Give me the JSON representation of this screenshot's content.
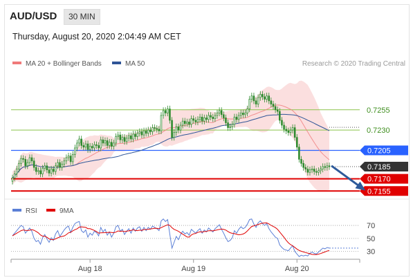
{
  "header": {
    "symbol": "AUD/USD",
    "interval": "30 MIN",
    "datetime": "Thursday, August 20, 2020 2:04:49 AM CET"
  },
  "colors": {
    "candle": "#2d8a2d",
    "bollinger": "#f4a3a3",
    "ma20": "#f07a7a",
    "ma50": "#2f5597",
    "resistance_line": "#8bc34a",
    "resistance_text": "#3e8e1e",
    "pivot": "#2962ff",
    "support": "#e00000",
    "current": "#333333",
    "arrow": "#2e5a9a",
    "rsi": "#5b7fd6",
    "rsi_ma": "#e00000"
  },
  "chart_data": [
    {
      "type": "candlestick",
      "legend": [
        {
          "name": "MA 20 + Bollinger Bands",
          "color": "#f07a7a"
        },
        {
          "name": "MA 50",
          "color": "#2f5597"
        }
      ],
      "legend_position": "top-left",
      "credit": "Research © 2020 Trading Central",
      "ylim": [
        0.7145,
        0.7305
      ],
      "x_ticks": [
        {
          "label": "Aug 18",
          "index": 36
        },
        {
          "label": "Aug 19",
          "index": 84
        },
        {
          "label": "Aug 20",
          "index": 132
        }
      ],
      "levels": [
        {
          "value": 0.7255,
          "label": "0.7255",
          "kind": "resistance"
        },
        {
          "value": 0.723,
          "label": "0.7230",
          "kind": "resistance"
        },
        {
          "value": 0.7205,
          "label": "0.7205",
          "kind": "pivot"
        },
        {
          "value": 0.7185,
          "label": "0.7185",
          "kind": "current"
        },
        {
          "value": 0.717,
          "label": "0.7170",
          "kind": "support"
        },
        {
          "value": 0.7155,
          "label": "0.7155",
          "kind": "support"
        }
      ],
      "arrow": {
        "from_index": 148,
        "from_value": 0.7186,
        "to_index": 163,
        "to_value": 0.7157
      },
      "close": [
        0.7171,
        0.7176,
        0.7182,
        0.7189,
        0.7195,
        0.7194,
        0.7186,
        0.719,
        0.7196,
        0.7192,
        0.7184,
        0.7179,
        0.718,
        0.7176,
        0.7183,
        0.7186,
        0.7181,
        0.7177,
        0.7182,
        0.7179,
        0.7186,
        0.719,
        0.7184,
        0.7188,
        0.7192,
        0.7196,
        0.7198,
        0.7191,
        0.72,
        0.7208,
        0.7214,
        0.7219,
        0.7211,
        0.7209,
        0.7213,
        0.7206,
        0.721,
        0.7208,
        0.7212,
        0.7211,
        0.7208,
        0.7218,
        0.7214,
        0.7217,
        0.7211,
        0.7215,
        0.721,
        0.7214,
        0.7222,
        0.7224,
        0.7218,
        0.7221,
        0.7216,
        0.722,
        0.7223,
        0.7219,
        0.7225,
        0.7222,
        0.7226,
        0.7228,
        0.7224,
        0.7229,
        0.7226,
        0.723,
        0.7228,
        0.7233,
        0.7232,
        0.7231,
        0.7229,
        0.7248,
        0.7254,
        0.7251,
        0.7256,
        0.7242,
        0.7221,
        0.7227,
        0.7234,
        0.723,
        0.7236,
        0.7241,
        0.7238,
        0.724,
        0.7237,
        0.7244,
        0.7242,
        0.724,
        0.7243,
        0.7246,
        0.7241,
        0.7245,
        0.7243,
        0.7248,
        0.7246,
        0.7244,
        0.7248,
        0.7251,
        0.7254,
        0.7249,
        0.7245,
        0.7239,
        0.7233,
        0.7234,
        0.7237,
        0.7246,
        0.7243,
        0.7248,
        0.7251,
        0.7249,
        0.7251,
        0.7256,
        0.7268,
        0.7272,
        0.7266,
        0.7262,
        0.727,
        0.7274,
        0.7271,
        0.7268,
        0.7272,
        0.7266,
        0.7262,
        0.7259,
        0.7255,
        0.7253,
        0.7242,
        0.7236,
        0.7231,
        0.7229,
        0.7227,
        0.723,
        0.7233,
        0.7221,
        0.7209,
        0.7194,
        0.7189,
        0.7184,
        0.7182,
        0.7178,
        0.7181,
        0.7182,
        0.7179,
        0.7178,
        0.718,
        0.7182,
        0.7185,
        0.7184,
        0.7186,
        0.7185
      ]
    },
    {
      "type": "line",
      "legend": [
        {
          "name": "RSI",
          "color": "#5b7fd6"
        },
        {
          "name": "9MA",
          "color": "#e00000"
        }
      ],
      "ylim": [
        20,
        85
      ],
      "y_ticks": [
        70,
        50,
        30
      ],
      "rsi": [
        54,
        58,
        62,
        66,
        70,
        68,
        58,
        62,
        66,
        61,
        50,
        45,
        47,
        41,
        51,
        56,
        49,
        44,
        51,
        47,
        57,
        62,
        53,
        58,
        63,
        67,
        69,
        59,
        67,
        73,
        75,
        76,
        62,
        59,
        63,
        52,
        58,
        55,
        61,
        59,
        54,
        67,
        60,
        64,
        55,
        60,
        52,
        58,
        68,
        70,
        61,
        64,
        56,
        61,
        65,
        58,
        66,
        61,
        66,
        68,
        61,
        67,
        62,
        67,
        64,
        69,
        67,
        65,
        62,
        77,
        80,
        76,
        79,
        57,
        35,
        44,
        53,
        48,
        56,
        61,
        57,
        59,
        55,
        64,
        61,
        58,
        62,
        65,
        58,
        63,
        60,
        66,
        63,
        60,
        65,
        68,
        71,
        64,
        58,
        51,
        45,
        47,
        51,
        62,
        58,
        64,
        68,
        65,
        67,
        72,
        79,
        80,
        72,
        67,
        74,
        77,
        73,
        70,
        73,
        65,
        60,
        56,
        52,
        50,
        40,
        36,
        33,
        32,
        31,
        35,
        39,
        30,
        26,
        22,
        24,
        23,
        24,
        23,
        27,
        29,
        27,
        26,
        29,
        32,
        35,
        34,
        36,
        35
      ]
    }
  ]
}
